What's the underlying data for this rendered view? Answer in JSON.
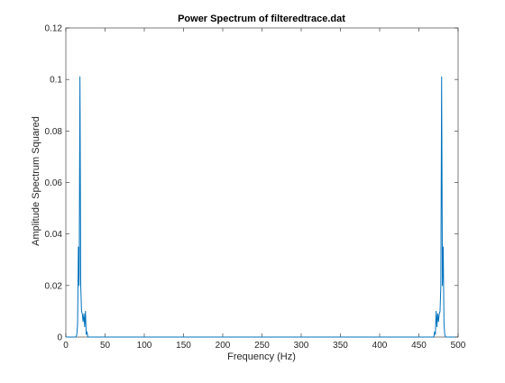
{
  "chart_data": {
    "type": "line",
    "title": "Power Spectrum of filteredtrace.dat",
    "xlabel": "Frequency (Hz)",
    "ylabel": "Amplitude Spectrum Squared",
    "xlim": [
      0,
      500
    ],
    "ylim": [
      0,
      0.12
    ],
    "xticks": [
      0,
      50,
      100,
      150,
      200,
      250,
      300,
      350,
      400,
      450,
      500
    ],
    "xtick_labels": [
      "0",
      "50",
      "100",
      "150",
      "200",
      "250",
      "300",
      "350",
      "400",
      "450",
      "500"
    ],
    "yticks": [
      0,
      0.02,
      0.04,
      0.06,
      0.08,
      0.1,
      0.12
    ],
    "ytick_labels": [
      "0",
      "0.02",
      "0.04",
      "0.06",
      "0.08",
      "0.1",
      "0.12"
    ],
    "grid": false,
    "line_color": "#0072BD",
    "series": [
      {
        "x": [
          0,
          13,
          14,
          15,
          16,
          17,
          18,
          19,
          20,
          21,
          22,
          23,
          24,
          25,
          26,
          27,
          28,
          29,
          30,
          31,
          32,
          33,
          40,
          460,
          467,
          468,
          469,
          470,
          471,
          472,
          473,
          474,
          475,
          476,
          477,
          478,
          479,
          480,
          481,
          482,
          483,
          484,
          485,
          486,
          487,
          490,
          496
        ],
        "y": [
          0,
          0,
          0.001,
          0.005,
          0.035,
          0.02,
          0.101,
          0.02,
          0.01,
          0.009,
          0.006,
          0.009,
          0.004,
          0.01,
          0.001,
          0.002,
          0,
          0,
          0,
          0,
          0,
          0,
          0,
          0,
          0,
          0,
          0,
          0.002,
          0.001,
          0.01,
          0.004,
          0.009,
          0.006,
          0.009,
          0.01,
          0.02,
          0.101,
          0.02,
          0.035,
          0.005,
          0.001,
          0,
          0,
          0,
          0,
          0,
          0
        ]
      }
    ]
  }
}
